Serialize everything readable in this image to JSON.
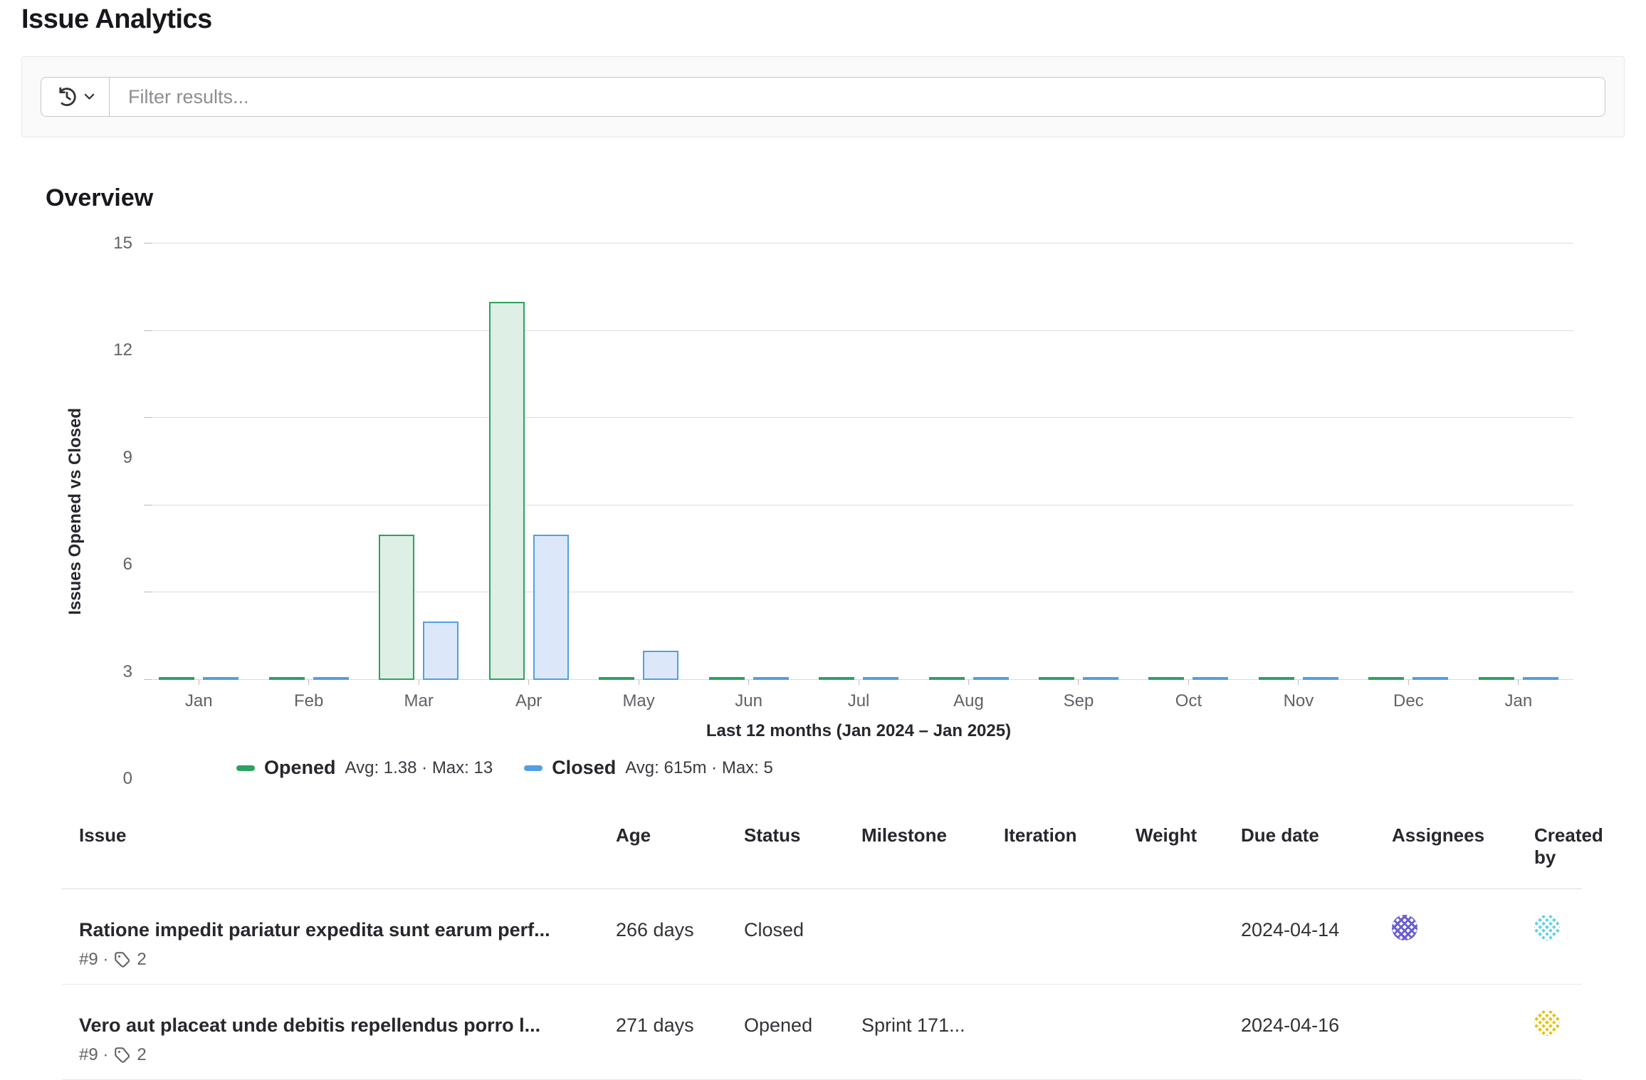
{
  "header": {
    "title": "Issue Analytics"
  },
  "filter": {
    "placeholder": "Filter results..."
  },
  "overview": {
    "heading": "Overview"
  },
  "chart_data": {
    "type": "bar",
    "categories": [
      "Jan",
      "Feb",
      "Mar",
      "Apr",
      "May",
      "Jun",
      "Jul",
      "Aug",
      "Sep",
      "Oct",
      "Nov",
      "Dec",
      "Jan"
    ],
    "series": [
      {
        "name": "Opened",
        "values": [
          0,
          0,
          5,
          13,
          0,
          0,
          0,
          0,
          0,
          0,
          0,
          0,
          0
        ],
        "color": "#2da160",
        "fill": "#def0e5",
        "legend_stats": "Avg: 1.38 · Max: 13"
      },
      {
        "name": "Closed",
        "values": [
          0,
          0,
          2,
          5,
          1,
          0,
          0,
          0,
          0,
          0,
          0,
          0,
          0
        ],
        "color": "#529fe1",
        "fill": "#dce8f9",
        "legend_stats": "Avg: 615m · Max: 5"
      }
    ],
    "ylabel": "Issues Opened vs Closed",
    "xlabel": "Last 12 months (Jan 2024 – Jan 2025)",
    "yticks": [
      0,
      3,
      6,
      9,
      12,
      15
    ],
    "ylim": [
      0,
      15
    ],
    "grid": true,
    "legend_position": "bottom-left"
  },
  "table": {
    "columns": [
      "Issue",
      "Age",
      "Status",
      "Milestone",
      "Iteration",
      "Weight",
      "Due date",
      "Assignees",
      "Created by"
    ],
    "rows": [
      {
        "title": "Ratione impedit pariatur expedita sunt earum perf...",
        "ref": "#9 ·",
        "label_count": "2",
        "age": "266 days",
        "status": "Closed",
        "milestone": "",
        "iteration": "",
        "weight": "",
        "due_date": "2024-04-14",
        "assignee_avatar": {
          "base": "#ffffff",
          "pattern": "#6a5ed1"
        },
        "created_by_avatar": {
          "base": "#63d1e8",
          "pattern": "#ffffff"
        }
      },
      {
        "title": "Vero aut placeat unde debitis repellendus porro l...",
        "ref": "#9 ·",
        "label_count": "2",
        "age": "271 days",
        "status": "Opened",
        "milestone": "Sprint 171...",
        "iteration": "",
        "weight": "",
        "due_date": "2024-04-16",
        "assignee_avatar": null,
        "created_by_avatar": {
          "base": "#e5c311",
          "pattern": "#ffffff"
        }
      }
    ]
  }
}
